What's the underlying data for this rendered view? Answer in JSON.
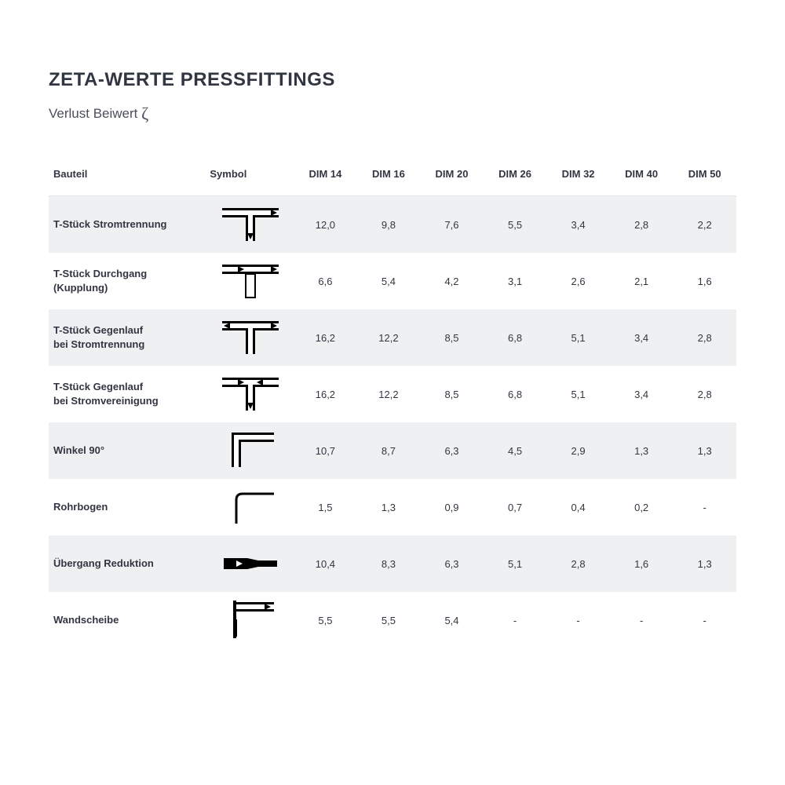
{
  "title": "ZETA-WERTE PRESSFITTINGS",
  "subtitle_prefix": "Verlust Beiwert ",
  "subtitle_symbol": "ζ",
  "colors": {
    "text": "#323642",
    "row_shade": "#eff0f2",
    "border": "#e4e6e9",
    "background": "#ffffff",
    "symbol_stroke": "#000000"
  },
  "columns": [
    "Bauteil",
    "Symbol",
    "DIM 14",
    "DIM 16",
    "DIM 20",
    "DIM 26",
    "DIM 32",
    "DIM 40",
    "DIM 50"
  ],
  "rows": [
    {
      "label": "T-Stück Stromtrennung",
      "symbol": "t_stromtrennung",
      "values": [
        "12,0",
        "9,8",
        "7,6",
        "5,5",
        "3,4",
        "2,8",
        "2,2"
      ]
    },
    {
      "label": "T-Stück Durchgang (Kupplung)",
      "symbol": "t_durchgang",
      "values": [
        "6,6",
        "5,4",
        "4,2",
        "3,1",
        "2,6",
        "2,1",
        "1,6"
      ]
    },
    {
      "label": "T-Stück Gegenlauf\nbei Stromtrennung",
      "symbol": "t_gegen_trennung",
      "values": [
        "16,2",
        "12,2",
        "8,5",
        "6,8",
        "5,1",
        "3,4",
        "2,8"
      ]
    },
    {
      "label": "T-Stück Gegenlauf\nbei Stromvereinigung",
      "symbol": "t_gegen_vereinigung",
      "values": [
        "16,2",
        "12,2",
        "8,5",
        "6,8",
        "5,1",
        "3,4",
        "2,8"
      ]
    },
    {
      "label": "Winkel 90°",
      "symbol": "winkel90",
      "values": [
        "10,7",
        "8,7",
        "6,3",
        "4,5",
        "2,9",
        "1,3",
        "1,3"
      ]
    },
    {
      "label": "Rohrbogen",
      "symbol": "rohrbogen",
      "values": [
        "1,5",
        "1,3",
        "0,9",
        "0,7",
        "0,4",
        "0,2",
        "-"
      ]
    },
    {
      "label": "Übergang Reduktion",
      "symbol": "reduktion",
      "values": [
        "10,4",
        "8,3",
        "6,3",
        "5,1",
        "2,8",
        "1,6",
        "1,3"
      ]
    },
    {
      "label": "Wandscheibe",
      "symbol": "wandscheibe",
      "values": [
        "5,5",
        "5,5",
        "5,4",
        "-",
        "-",
        "-",
        "-"
      ]
    }
  ]
}
